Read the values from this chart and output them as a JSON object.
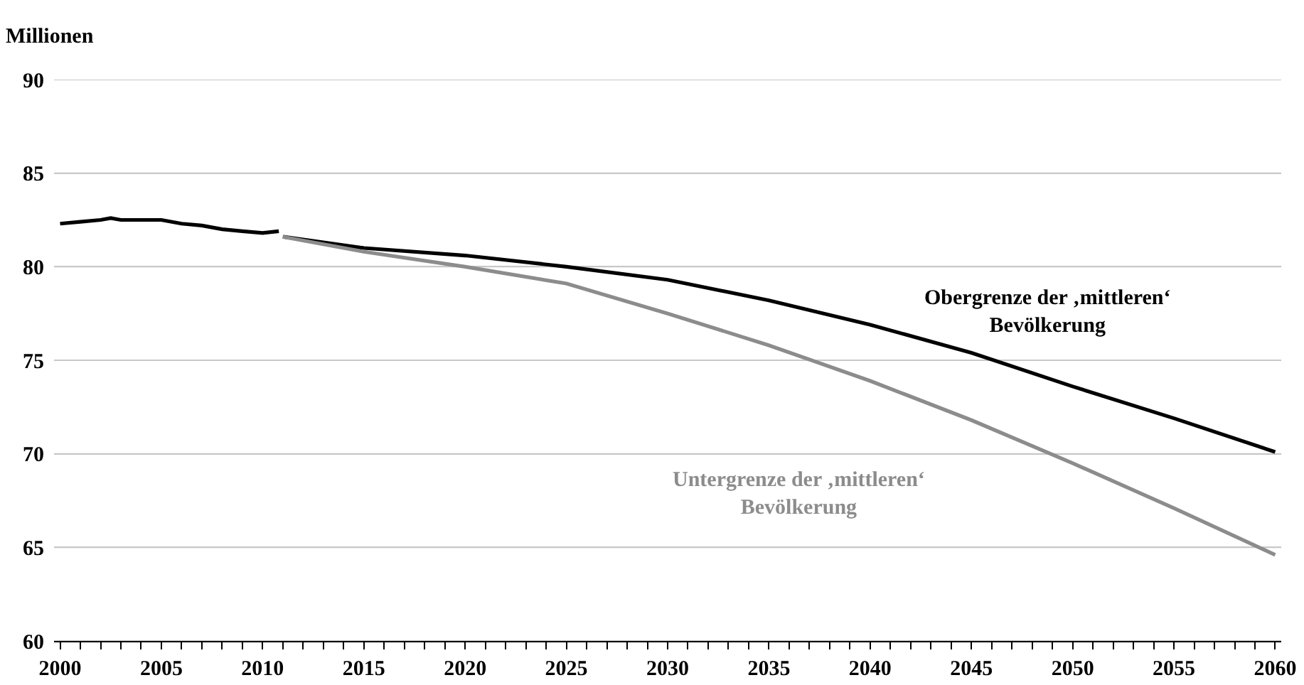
{
  "chart_data": {
    "type": "line",
    "ylabel": "Millionen",
    "series": [
      {
        "color": "#000000",
        "x": [
          2000,
          2001,
          2002,
          2002.5,
          2003,
          2004,
          2005,
          2006,
          2007,
          2008,
          2009,
          2010,
          2010.8
        ],
        "values": [
          82.3,
          82.4,
          82.5,
          82.6,
          82.5,
          82.5,
          82.5,
          82.3,
          82.2,
          82.0,
          81.9,
          81.8,
          81.9
        ]
      },
      {
        "name": "Obergrenze der ‚mittleren‘ Bevölkerung",
        "color": "#000000",
        "x": [
          2011,
          2015,
          2020,
          2025,
          2030,
          2035,
          2040,
          2045,
          2050,
          2055,
          2060
        ],
        "values": [
          81.6,
          81.0,
          80.6,
          80.0,
          79.3,
          78.2,
          76.9,
          75.4,
          73.6,
          71.9,
          70.1
        ]
      },
      {
        "name": "Untergrenze der ‚mittleren‘ Bevölkerung",
        "color": "#8c8c8c",
        "x": [
          2011,
          2015,
          2020,
          2025,
          2030,
          2035,
          2040,
          2045,
          2050,
          2055,
          2060
        ],
        "values": [
          81.6,
          80.8,
          80.0,
          79.1,
          77.5,
          75.8,
          73.9,
          71.8,
          69.5,
          67.1,
          64.6
        ]
      }
    ],
    "xlim": [
      1999.7,
      2060.3
    ],
    "xticks": [
      2000,
      {
        "value": 2001,
        "label": null
      },
      {
        "value": 2002,
        "label": null
      },
      {
        "value": 2003,
        "label": null
      },
      {
        "value": 2004,
        "label": null
      },
      2005,
      {
        "value": 2006,
        "label": null
      },
      {
        "value": 2007,
        "label": null
      },
      {
        "value": 2008,
        "label": null
      },
      {
        "value": 2009,
        "label": null
      },
      2010,
      {
        "value": 2011,
        "label": null
      },
      {
        "value": 2012,
        "label": null
      },
      {
        "value": 2013,
        "label": null
      },
      {
        "value": 2014,
        "label": null
      },
      2015,
      {
        "value": 2016,
        "label": null
      },
      {
        "value": 2017,
        "label": null
      },
      {
        "value": 2018,
        "label": null
      },
      {
        "value": 2019,
        "label": null
      },
      2020,
      {
        "value": 2021,
        "label": null
      },
      {
        "value": 2022,
        "label": null
      },
      {
        "value": 2023,
        "label": null
      },
      {
        "value": 2024,
        "label": null
      },
      2025,
      {
        "value": 2026,
        "label": null
      },
      {
        "value": 2027,
        "label": null
      },
      {
        "value": 2028,
        "label": null
      },
      {
        "value": 2029,
        "label": null
      },
      2030,
      {
        "value": 2031,
        "label": null
      },
      {
        "value": 2032,
        "label": null
      },
      {
        "value": 2033,
        "label": null
      },
      {
        "value": 2034,
        "label": null
      },
      2035,
      {
        "value": 2036,
        "label": null
      },
      {
        "value": 2037,
        "label": null
      },
      {
        "value": 2038,
        "label": null
      },
      {
        "value": 2039,
        "label": null
      },
      2040,
      {
        "value": 2041,
        "label": null
      },
      {
        "value": 2042,
        "label": null
      },
      {
        "value": 2043,
        "label": null
      },
      {
        "value": 2044,
        "label": null
      },
      2045,
      {
        "value": 2046,
        "label": null
      },
      {
        "value": 2047,
        "label": null
      },
      {
        "value": 2048,
        "label": null
      },
      {
        "value": 2049,
        "label": null
      },
      2050,
      {
        "value": 2051,
        "label": null
      },
      {
        "value": 2052,
        "label": null
      },
      {
        "value": 2053,
        "label": null
      },
      {
        "value": 2054,
        "label": null
      },
      2055,
      {
        "value": 2056,
        "label": null
      },
      {
        "value": 2057,
        "label": null
      },
      {
        "value": 2058,
        "label": null
      },
      {
        "value": 2059,
        "label": null
      },
      2060
    ],
    "ylim": [
      60,
      90
    ],
    "yticks": [
      60,
      65,
      70,
      75,
      80,
      85,
      90
    ],
    "grid": "y",
    "legend": false,
    "marker": "none",
    "line_style": "solid"
  }
}
